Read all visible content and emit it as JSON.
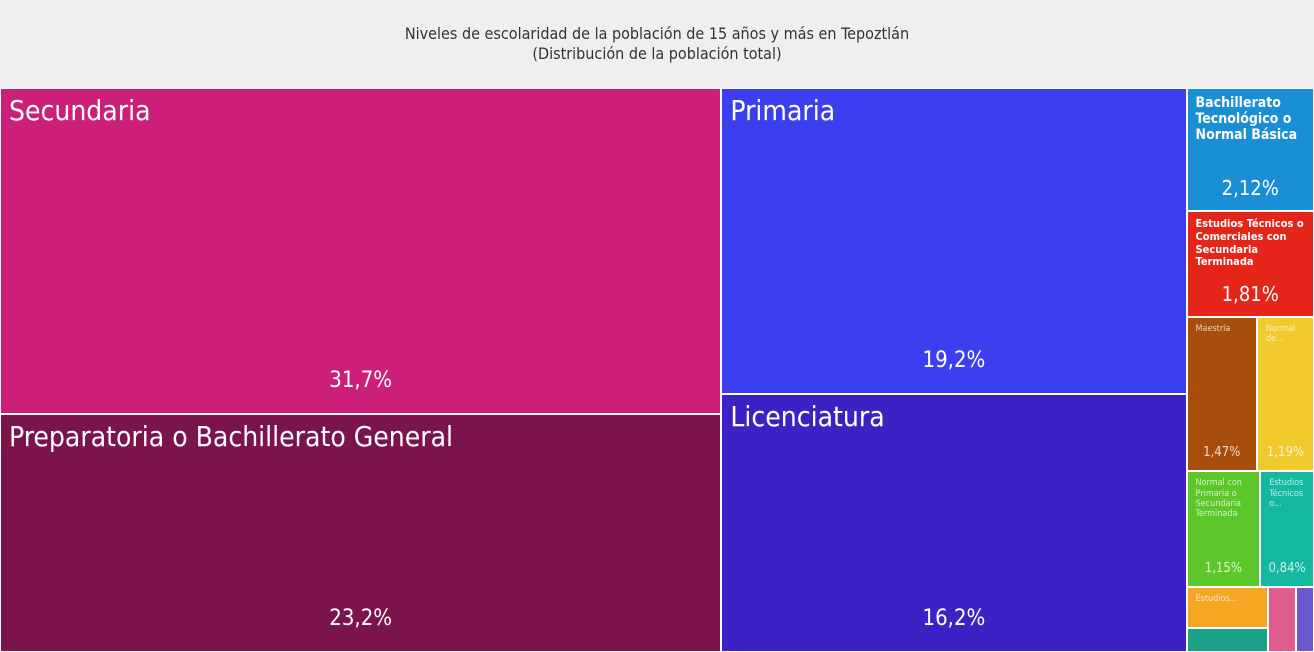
{
  "chart_data": {
    "type": "treemap",
    "title": "Niveles de escolaridad de la población de 15 años y más en Tepoztlán",
    "subtitle": "(Distribución de la población total)",
    "categories": [
      "Secundaria",
      "Preparatoria o Bachillerato General",
      "Primaria",
      "Licenciatura",
      "Bachillerato Tecnológico o Normal Básica",
      "Estudios Técnicos o Comerciales con Secundaria Terminada",
      "Maestría",
      "Normal de...",
      "Normal con Primaria o Secundaria Terminada",
      "Estudios Técnicos o...",
      "Estudios...",
      null,
      null,
      null
    ],
    "values": [
      31.7,
      23.2,
      19.2,
      16.2,
      2.12,
      1.81,
      1.47,
      1.19,
      1.15,
      0.84,
      0.46,
      0.26,
      0.24,
      0.16
    ],
    "value_labels": [
      "31,7%",
      "23,2%",
      "19,2%",
      "16,2%",
      "2,12%",
      "1,81%",
      "1,47%",
      "1,19%",
      "1,15%",
      "0,84%",
      null,
      null,
      null,
      null
    ],
    "colors": [
      "#cc1f7a",
      "#7c144c",
      "#3c3ff0",
      "#3a22c4",
      "#1a8fd6",
      "#e5251a",
      "#a84e0c",
      "#f0c92a",
      "#5cc72a",
      "#14b8a0",
      "#f5a623",
      "#1aa38a",
      "#e05c8e",
      "#6a5acd"
    ]
  }
}
